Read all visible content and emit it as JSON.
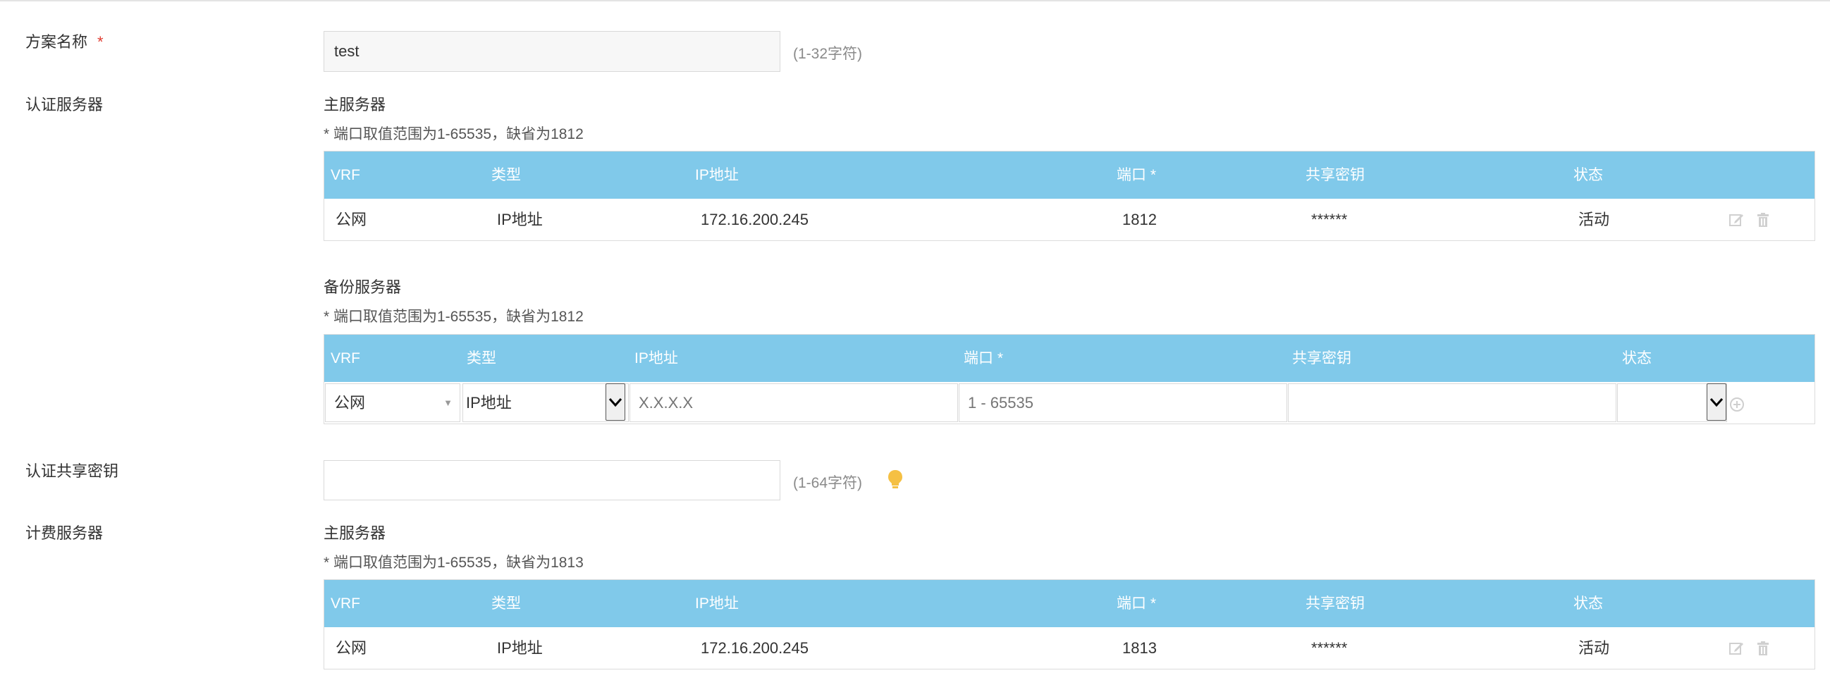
{
  "scheme": {
    "label": "方案名称",
    "required_mark": "*",
    "value": "test",
    "hint": "(1-32字符)"
  },
  "auth_server": {
    "label": "认证服务器",
    "primary": {
      "title": "主服务器",
      "note": "* 端口取值范围为1-65535，缺省为1812",
      "headers": [
        "VRF",
        "类型",
        "IP地址",
        "端口 *",
        "共享密钥",
        "状态"
      ],
      "row": {
        "vrf": "公网",
        "type": "IP地址",
        "ip": "172.16.200.245",
        "port": "1812",
        "key": "******",
        "status": "活动"
      }
    },
    "backup": {
      "title": "备份服务器",
      "note": "* 端口取值范围为1-65535，缺省为1812",
      "headers": [
        "VRF",
        "类型",
        "IP地址",
        "端口 *",
        "共享密钥",
        "状态"
      ],
      "vrf_value": "公网",
      "type_value": "IP地址",
      "ip_placeholder": "X.X.X.X",
      "port_placeholder": "1 - 65535",
      "key_value": "",
      "status_value": ""
    }
  },
  "auth_key": {
    "label": "认证共享密钥",
    "value": "",
    "hint": "(1-64字符)"
  },
  "acct_server": {
    "label": "计费服务器",
    "primary": {
      "title": "主服务器",
      "note": "* 端口取值范围为1-65535，缺省为1813",
      "headers": [
        "VRF",
        "类型",
        "IP地址",
        "端口 *",
        "共享密钥",
        "状态"
      ],
      "row": {
        "vrf": "公网",
        "type": "IP地址",
        "ip": "172.16.200.245",
        "port": "1813",
        "key": "******",
        "status": "活动"
      }
    }
  },
  "icons": {
    "edit": "edit-icon",
    "delete": "trash-icon",
    "add": "add-circle-icon",
    "tip": "lightbulb-icon",
    "dropdown": "chevron-down-icon"
  },
  "colors": {
    "header_bg": "#80c9ea",
    "required": "#e03c31",
    "tip": "#f5c043"
  }
}
